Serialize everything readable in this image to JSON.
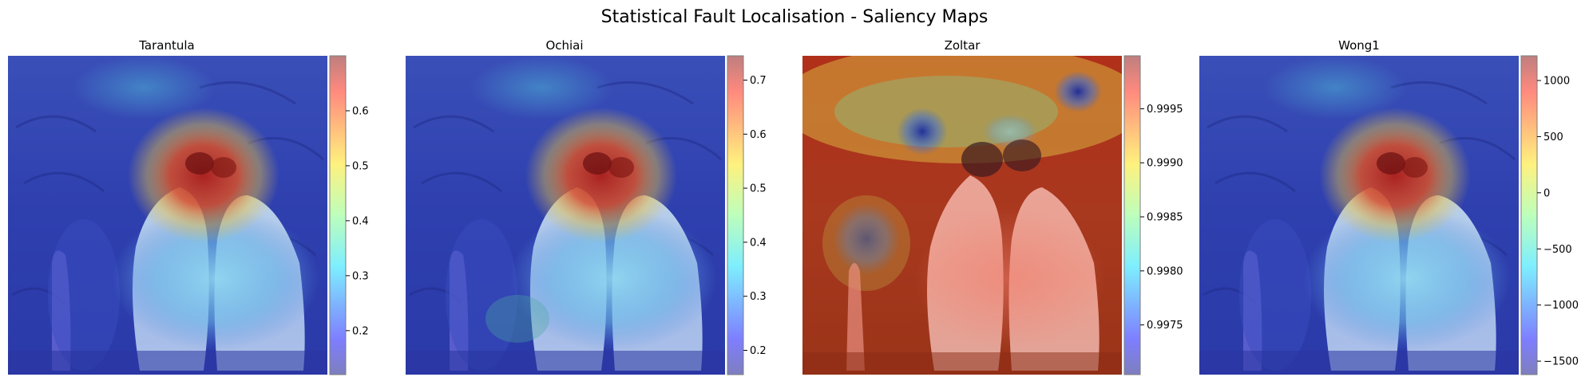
{
  "chart_data": {
    "type": "heatmap",
    "title": "Statistical Fault Localisation - Saliency Maps",
    "colormap": "jet",
    "overlay_alpha": 0.5,
    "panels": [
      {
        "title": "Tarantula",
        "colorbar": {
          "range": [
            0.12,
            0.7
          ],
          "ticks": [
            0.2,
            0.3,
            0.4,
            0.5,
            0.6
          ],
          "tick_labels": [
            "0.2",
            "0.3",
            "0.4",
            "0.5",
            "0.6"
          ]
        },
        "saliency": "high over penguin heads, medium over penguin bodies, low in background"
      },
      {
        "title": "Ochiai",
        "colorbar": {
          "range": [
            0.155,
            0.745
          ],
          "ticks": [
            0.2,
            0.3,
            0.4,
            0.5,
            0.6,
            0.7
          ],
          "tick_labels": [
            "0.2",
            "0.3",
            "0.4",
            "0.5",
            "0.6",
            "0.7"
          ]
        },
        "saliency": "high over penguin heads, medium over penguin bodies, low in background"
      },
      {
        "title": "Zoltar",
        "colorbar": {
          "range": [
            0.99704,
            0.99999
          ],
          "ticks": [
            0.9975,
            0.998,
            0.9985,
            0.999,
            0.9995
          ],
          "tick_labels": [
            "0.9975",
            "0.9980",
            "0.9985",
            "0.9990",
            "0.9995"
          ]
        },
        "saliency": "high almost everywhere, low spots in upper sky region and left small penguin"
      },
      {
        "title": "Wong1",
        "colorbar": {
          "range": [
            -1620,
            1220
          ],
          "ticks": [
            -1500,
            -1000,
            -500,
            0,
            500,
            1000
          ],
          "tick_labels": [
            "−1500",
            "−1000",
            "−500",
            "0",
            "500",
            "1000"
          ]
        },
        "saliency": "high over penguin heads, medium over penguin bodies, low in background"
      }
    ]
  },
  "colors": {
    "background_dark": "#2b2f66",
    "low": "#2430b8",
    "mid": "#5fd0f0",
    "high": "#c81e10"
  }
}
